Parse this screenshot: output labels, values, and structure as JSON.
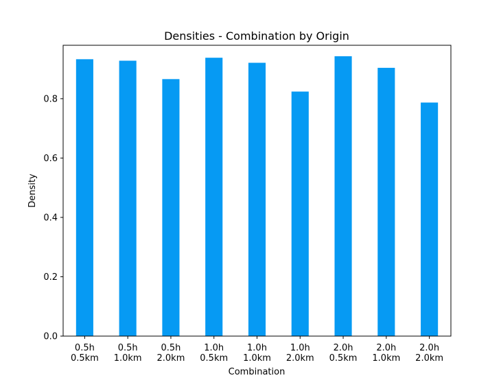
{
  "chart_data": {
    "type": "bar",
    "title": "Densities - Combination by Origin",
    "xlabel": "Combination",
    "ylabel": "Density",
    "categories": [
      [
        "0.5h",
        "0.5km"
      ],
      [
        "0.5h",
        "1.0km"
      ],
      [
        "0.5h",
        "2.0km"
      ],
      [
        "1.0h",
        "0.5km"
      ],
      [
        "1.0h",
        "1.0km"
      ],
      [
        "1.0h",
        "2.0km"
      ],
      [
        "2.0h",
        "0.5km"
      ],
      [
        "2.0h",
        "1.0km"
      ],
      [
        "2.0h",
        "2.0km"
      ]
    ],
    "values": [
      0.933,
      0.928,
      0.866,
      0.938,
      0.921,
      0.824,
      0.943,
      0.904,
      0.787
    ],
    "ylim": [
      0,
      0.98
    ],
    "yticks": [
      0.0,
      0.2,
      0.4,
      0.6,
      0.8
    ],
    "ytick_labels": [
      "0.0",
      "0.2",
      "0.4",
      "0.6",
      "0.8"
    ],
    "bar_color": "#069af3",
    "grid": false,
    "legend": false
  }
}
